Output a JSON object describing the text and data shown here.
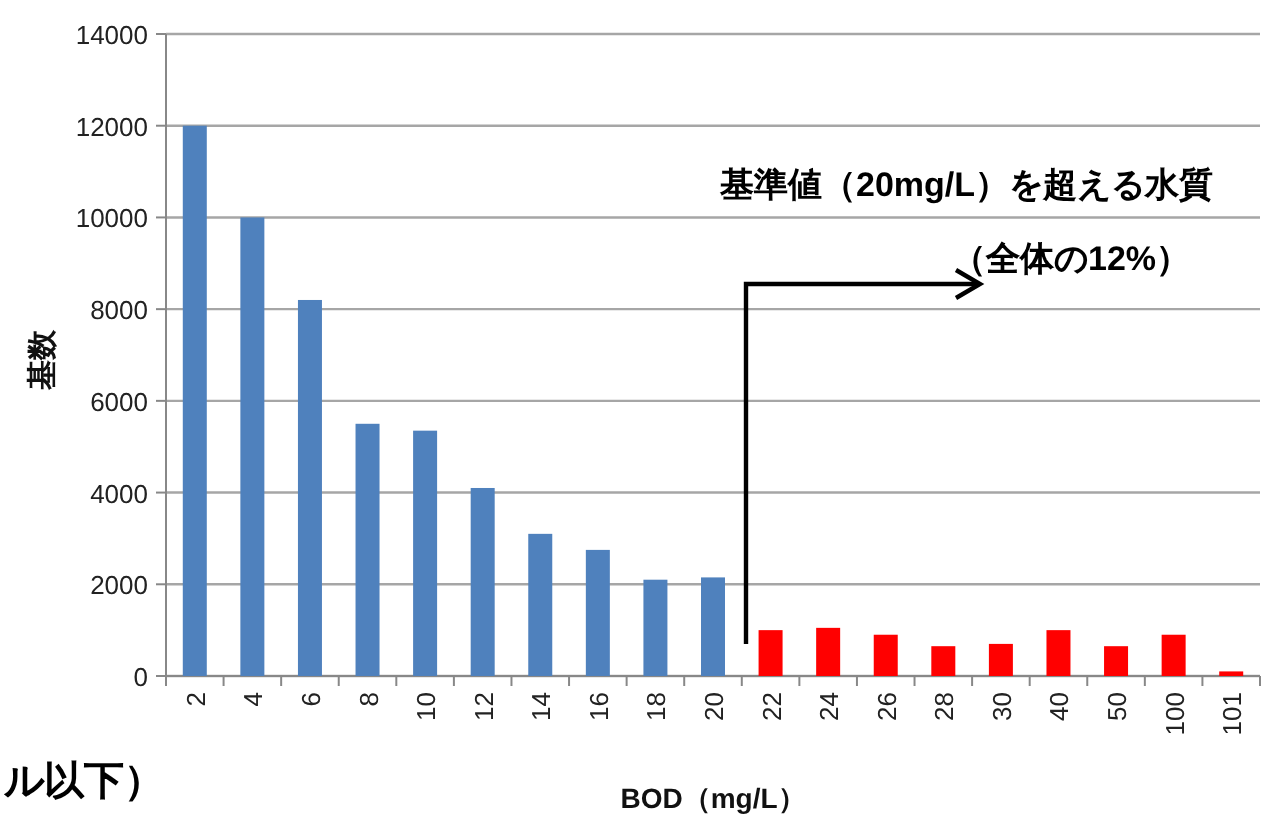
{
  "chart_data": {
    "type": "bar",
    "categories": [
      "2",
      "4",
      "6",
      "8",
      "10",
      "12",
      "14",
      "16",
      "18",
      "20",
      "22",
      "24",
      "26",
      "28",
      "30",
      "40",
      "50",
      "100",
      "101"
    ],
    "values": [
      12000,
      10000,
      8200,
      5500,
      5350,
      4100,
      3100,
      2750,
      2100,
      2150,
      1000,
      1050,
      900,
      650,
      700,
      1000,
      650,
      900,
      100
    ],
    "colors": [
      "#4f81bd",
      "#4f81bd",
      "#4f81bd",
      "#4f81bd",
      "#4f81bd",
      "#4f81bd",
      "#4f81bd",
      "#4f81bd",
      "#4f81bd",
      "#4f81bd",
      "#ff0000",
      "#ff0000",
      "#ff0000",
      "#ff0000",
      "#ff0000",
      "#ff0000",
      "#ff0000",
      "#ff0000",
      "#ff0000"
    ],
    "ylim": [
      0,
      14000
    ],
    "yticks": [
      0,
      2000,
      4000,
      6000,
      8000,
      10000,
      12000,
      14000
    ],
    "grid": "y",
    "xlabel": "BOD（mg/L）",
    "ylabel": "基数",
    "annotations": [
      "基準値（20mg/L）を超える水質",
      "（全体の12%）",
      "ル以下）"
    ]
  }
}
